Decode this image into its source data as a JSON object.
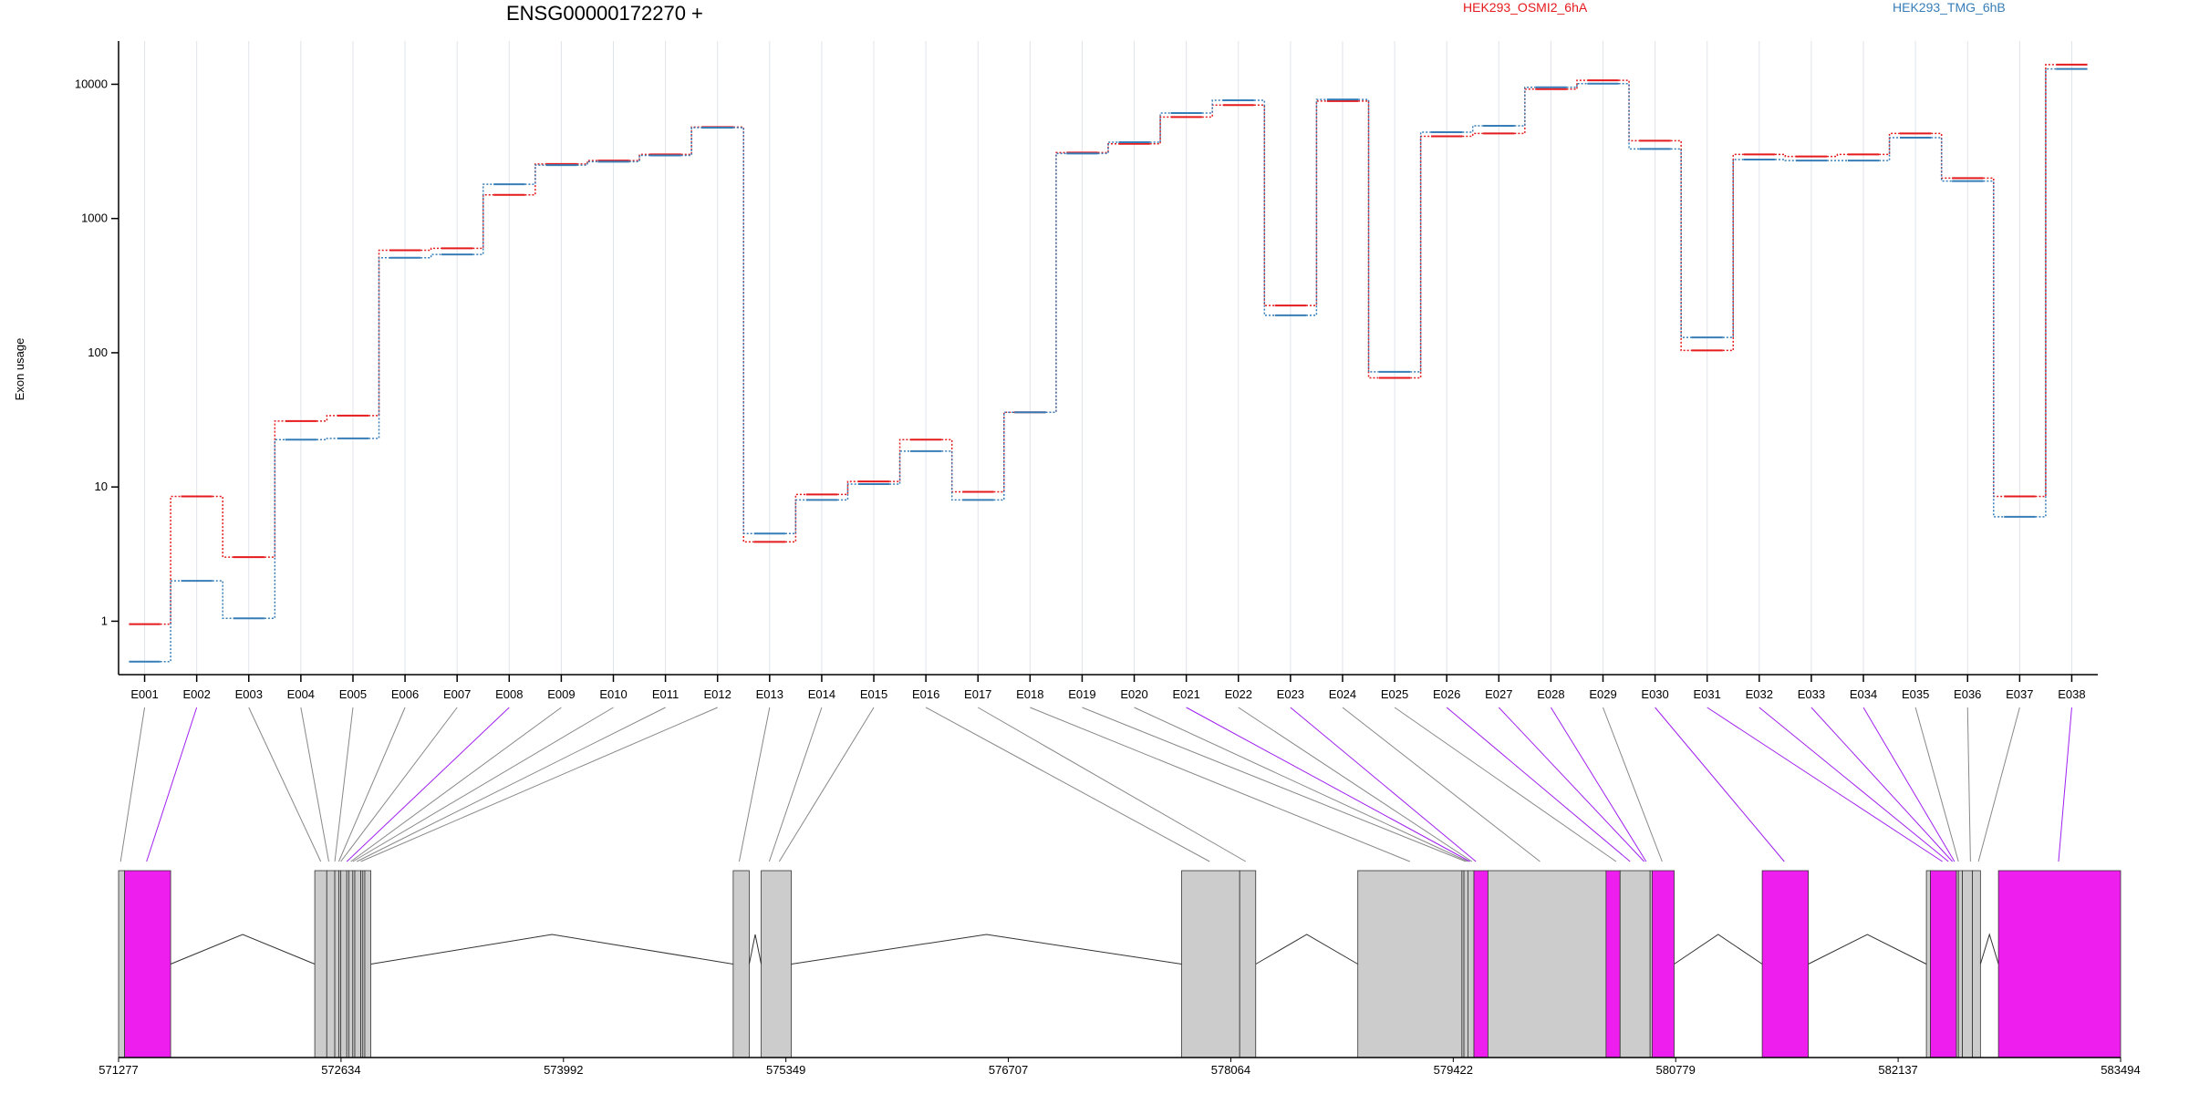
{
  "chart_data": {
    "type": "line",
    "title": "ENSG00000172270 +",
    "ylabel": "Exon usage",
    "yscale": "log",
    "ylim": [
      0.4,
      21000
    ],
    "y_ticks": [
      1,
      10,
      100,
      1000,
      10000
    ],
    "y_tick_labels": [
      "1",
      "10",
      "100",
      "1000",
      "10000"
    ],
    "grid": true,
    "legend_placement": "top",
    "categories": [
      "E001",
      "E002",
      "E003",
      "E004",
      "E005",
      "E006",
      "E007",
      "E008",
      "E009",
      "E010",
      "E011",
      "E012",
      "E013",
      "E014",
      "E015",
      "E016",
      "E017",
      "E018",
      "E019",
      "E020",
      "E021",
      "E022",
      "E023",
      "E024",
      "E025",
      "E026",
      "E027",
      "E028",
      "E029",
      "E030",
      "E031",
      "E032",
      "E033",
      "E034",
      "E035",
      "E036",
      "E037",
      "E038"
    ],
    "series": [
      {
        "name": "HEK293_OSMI2_6hA",
        "color": "#e41a1c",
        "values": [
          0.95,
          8.5,
          3.0,
          31,
          34,
          580,
          600,
          1500,
          2550,
          2700,
          3000,
          4800,
          3.9,
          8.8,
          11,
          22.5,
          9.2,
          36,
          3100,
          3600,
          5700,
          7000,
          225,
          7500,
          65,
          4100,
          4300,
          9200,
          10700,
          3800,
          104,
          3000,
          2900,
          3000,
          4300,
          2000,
          8.5,
          14000
        ]
      },
      {
        "name": "HEK293_TMG_6hB",
        "color": "#377eb8",
        "values": [
          0.5,
          2.0,
          1.05,
          22.5,
          23,
          510,
          540,
          1800,
          2500,
          2650,
          2950,
          4750,
          4.5,
          8.0,
          10.5,
          18.5,
          8.0,
          36,
          3050,
          3700,
          6100,
          7600,
          190,
          7700,
          72,
          4400,
          4900,
          9500,
          10100,
          3300,
          130,
          2750,
          2700,
          2700,
          4000,
          1900,
          6.0,
          13000
        ]
      }
    ],
    "gene_axis": {
      "tick_labels": [
        "571277",
        "572634",
        "573992",
        "575349",
        "576707",
        "578064",
        "579422",
        "580779",
        "582137",
        "583494"
      ]
    }
  },
  "colors": {
    "significant_exon": "#ee1eee",
    "exon": "#cccccc",
    "connector_significant": "#a020f0",
    "connector": "#888888",
    "grid": "#dfe3ea"
  }
}
